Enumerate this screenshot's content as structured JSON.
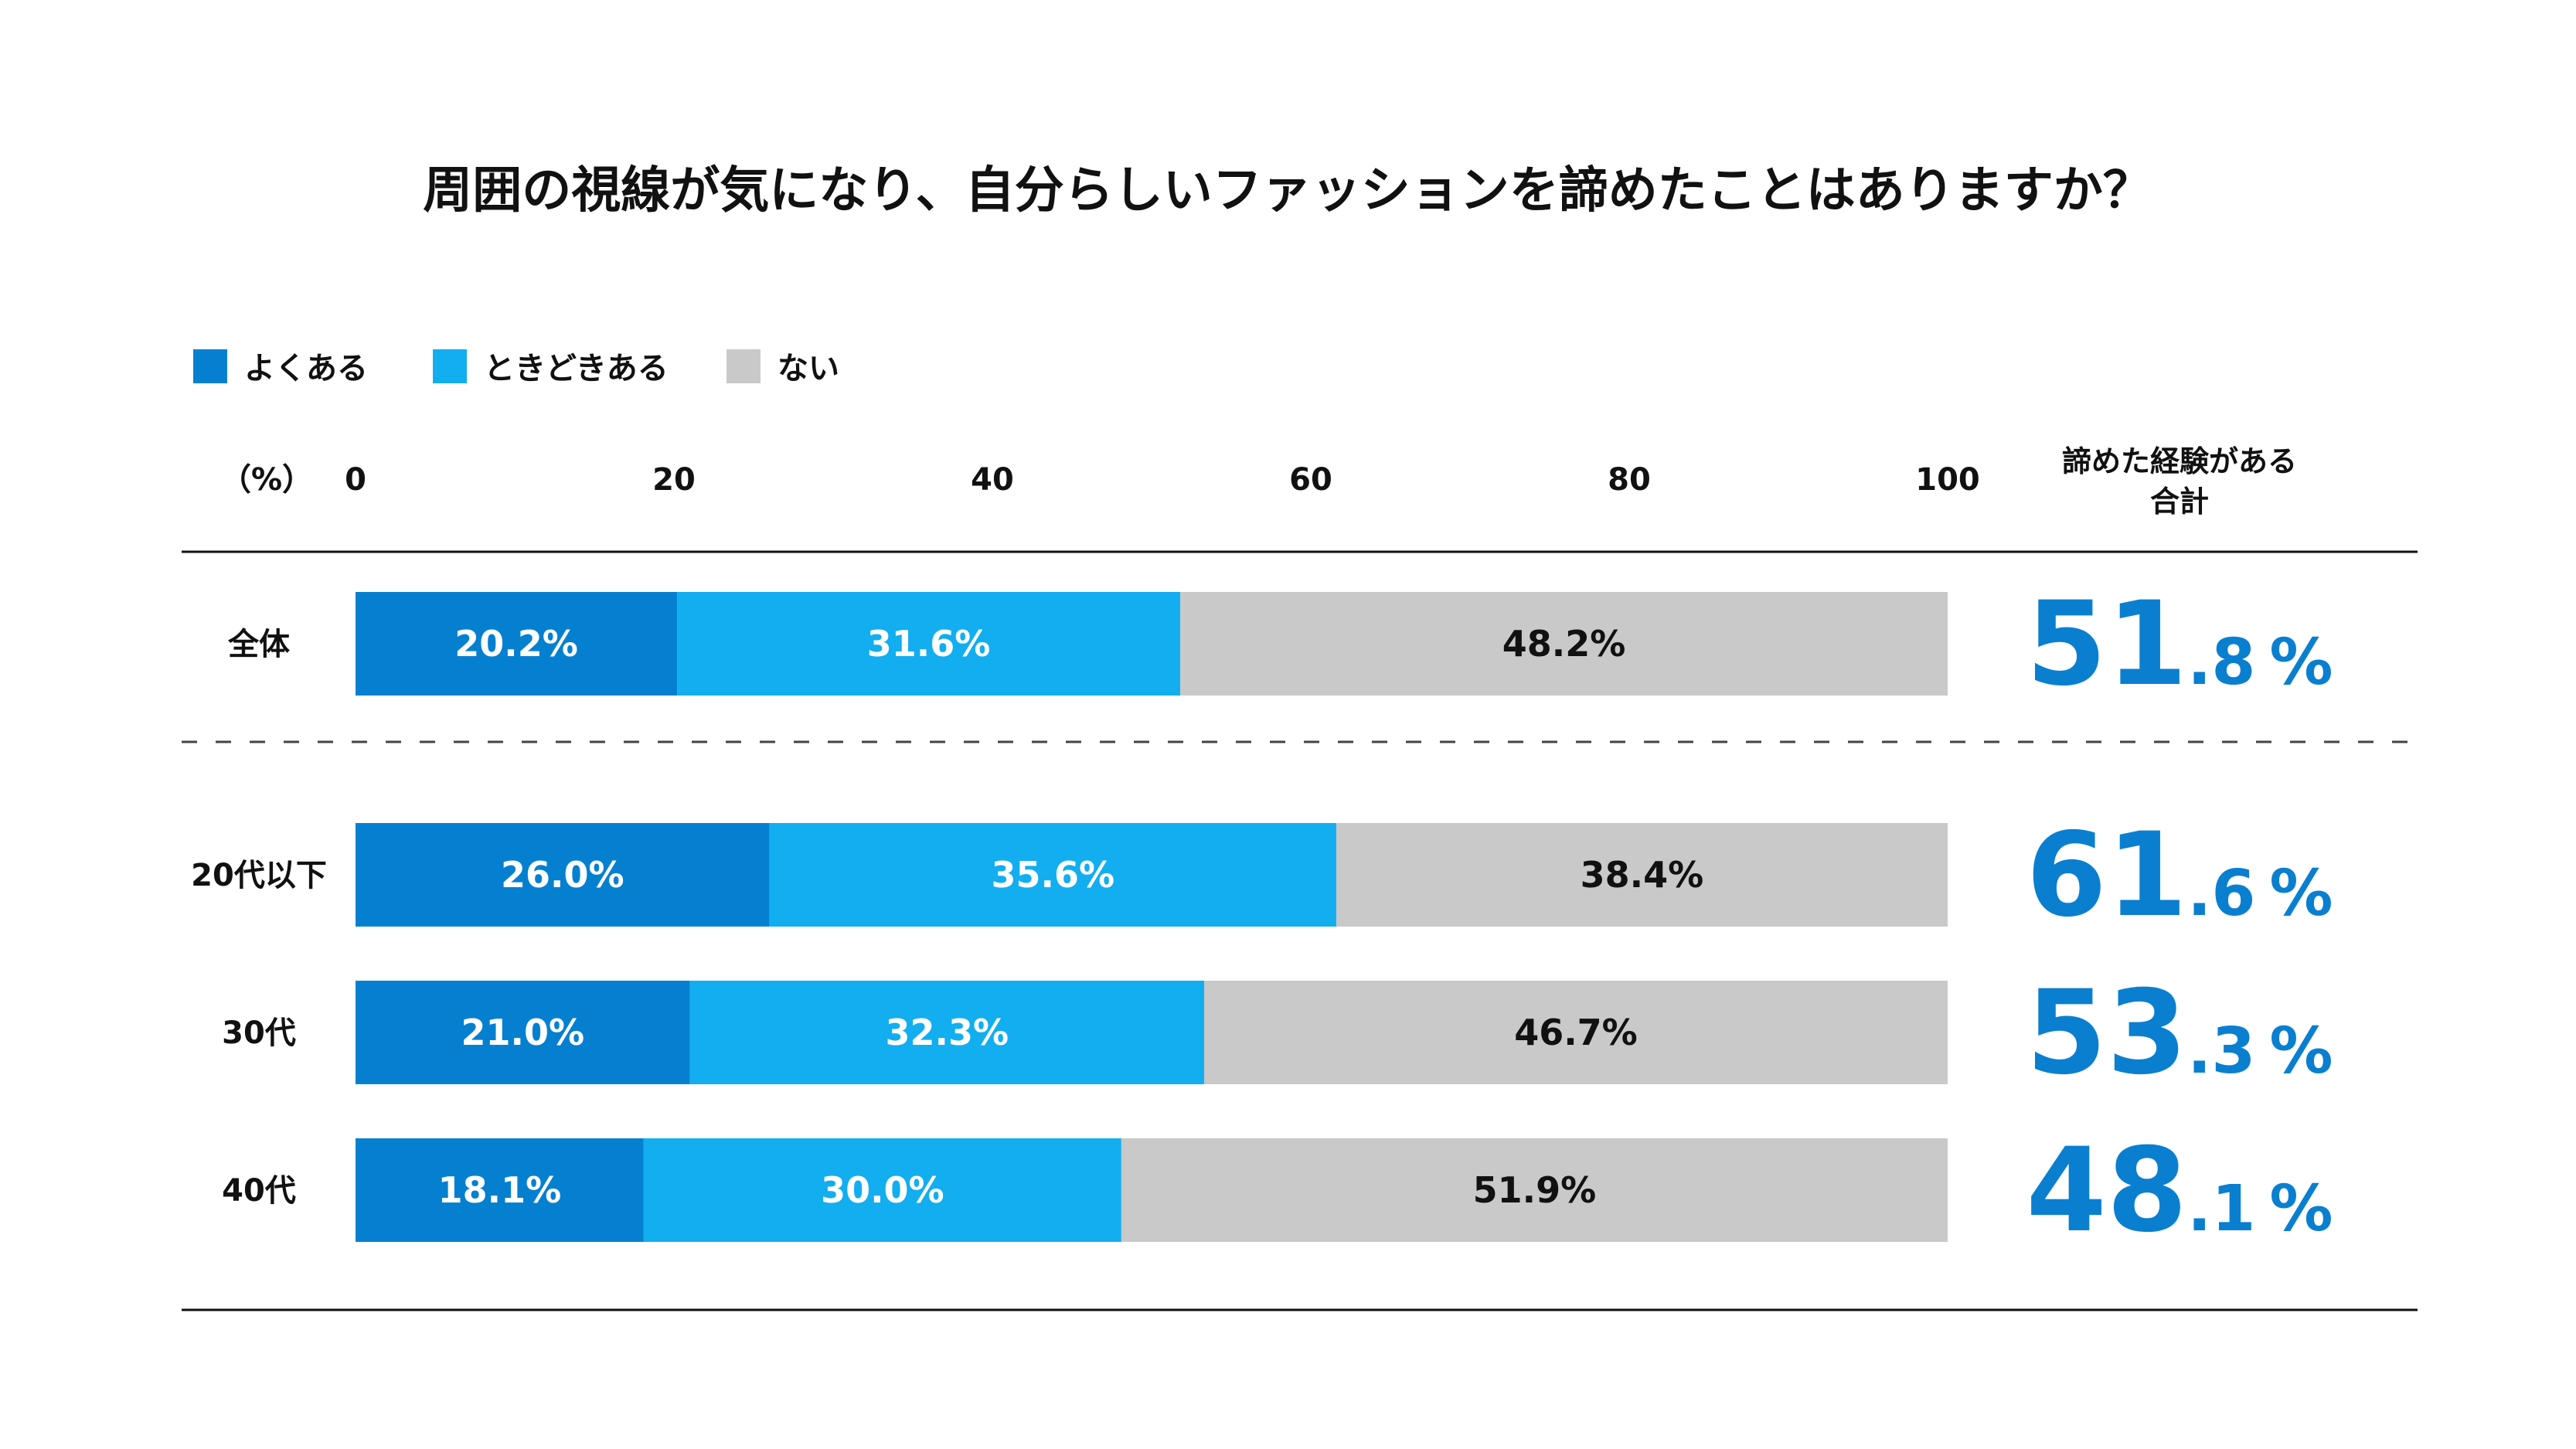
{
  "chart_data": {
    "type": "bar",
    "stacked": true,
    "orientation": "horizontal",
    "title": "周囲の視線が気になり、自分らしいファッションを諦めたことはありますか？",
    "unit_label": "（%）",
    "xlim": [
      0,
      100
    ],
    "x_ticks": [
      "0",
      "20",
      "40",
      "60",
      "80",
      "100"
    ],
    "legend_position": "top-left",
    "total_header": [
      "諦めた経験がある",
      "合計"
    ],
    "categories": [
      "全体",
      "20代以下",
      "30代",
      "40代"
    ],
    "series": [
      {
        "name": "よくある",
        "color": "#0580d0",
        "values": [
          20.2,
          26.0,
          21.0,
          18.1
        ],
        "labels": [
          "20.2%",
          "26.0%",
          "21.0%",
          "18.1%"
        ],
        "label_color": "#ffffff"
      },
      {
        "name": "ときどきある",
        "color": "#12aef0",
        "values": [
          31.6,
          35.6,
          32.3,
          30.0
        ],
        "labels": [
          "31.6%",
          "35.6%",
          "32.3%",
          "30.0%"
        ],
        "label_color": "#ffffff"
      },
      {
        "name": "ない",
        "color": "#c9c9c9",
        "values": [
          48.2,
          38.4,
          46.7,
          51.9
        ],
        "labels": [
          "48.2%",
          "38.4%",
          "46.7%",
          "51.9%"
        ],
        "label_color": "#111111"
      }
    ],
    "totals": [
      {
        "int": "51",
        "dec": ".8",
        "unit": "%"
      },
      {
        "int": "61",
        "dec": ".6",
        "unit": "%"
      },
      {
        "int": "53",
        "dec": ".3",
        "unit": "%"
      },
      {
        "int": "48",
        "dec": ".1",
        "unit": "%"
      }
    ],
    "colors": {
      "total_text": "#0a7fd0",
      "rule": "#111111",
      "dashed_rule": "#444444"
    }
  }
}
